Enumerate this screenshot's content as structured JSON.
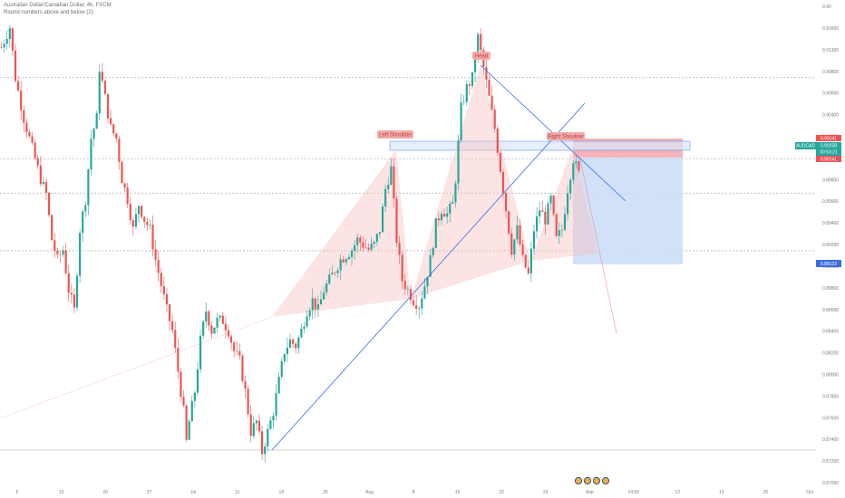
{
  "header": {
    "title": "Australian Dollar/Canadian Dollar, 4h, FXCM",
    "indicator": "Round numbers above and below (2)"
  },
  "price_label_top": "0.40",
  "colors": {
    "up": "#26a69a",
    "down": "#ef5350",
    "trendline": "#3c6ee8",
    "pattern_fill": "#f8c4c4",
    "target_zone": "#c9dcf7",
    "stop_zone": "#f3a7ad",
    "neckline_zone": "#dbe8fb",
    "grid_dashed": "#999999",
    "annotation_bg": "#f4a8a8",
    "annotation_text": "#b84545"
  },
  "chart_data": {
    "type": "candlestick",
    "title": "Australian Dollar/Canadian Dollar, 4h, FXCM",
    "symbol": "AUDCAD",
    "timeframe": "4h",
    "ylim": [
      0.87,
      0.92
    ],
    "y_ticks": [
      "0.91600",
      "0.91300",
      "0.90800",
      "0.90600",
      "0.90400",
      "0.90200",
      "0.90000",
      "0.89800",
      "0.89600",
      "0.89400",
      "0.89200",
      "0.89000",
      "0.88800",
      "0.88600",
      "0.88400",
      "0.88200",
      "0.88000",
      "0.87800",
      "0.87600",
      "0.87400",
      "0.87200",
      "0.87000"
    ],
    "x_ticks": [
      "6",
      "13",
      "20",
      "27",
      "Jul",
      "11",
      "18",
      "25",
      "Aug",
      "8",
      "15",
      "22",
      "29",
      "Sep",
      "14:00",
      "12",
      "19",
      "26",
      "Oct"
    ],
    "grid": "horizontal round-number dashed lines",
    "round_number_levels": [
      0.911,
      0.903,
      0.8996,
      0.8939
    ],
    "annotations": [
      "Head",
      "Left Shoulder",
      "Right Shoulder"
    ],
    "price_labels": {
      "stop": "0.90141",
      "current_symbol": "AUDCAD",
      "current": "0.90258",
      "countdown": "00:53:21",
      "entry": "0.90141",
      "target": "0.89122"
    },
    "ohlc_anchor_points": [
      [
        0,
        0.914
      ],
      [
        3,
        0.916
      ],
      [
        5,
        0.911
      ],
      [
        8,
        0.907
      ],
      [
        11,
        0.904
      ],
      [
        14,
        0.901
      ],
      [
        16,
        0.8995
      ],
      [
        18,
        0.895
      ],
      [
        20,
        0.893
      ],
      [
        22,
        0.894
      ],
      [
        24,
        0.89
      ],
      [
        26,
        0.888
      ],
      [
        28,
        0.896
      ],
      [
        30,
        0.899
      ],
      [
        32,
        0.905
      ],
      [
        34,
        0.907
      ],
      [
        35,
        0.912
      ],
      [
        37,
        0.909
      ],
      [
        39,
        0.906
      ],
      [
        41,
        0.905
      ],
      [
        43,
        0.901
      ],
      [
        45,
        0.899
      ],
      [
        47,
        0.896
      ],
      [
        49,
        0.8985
      ],
      [
        51,
        0.897
      ],
      [
        53,
        0.896
      ],
      [
        55,
        0.893
      ],
      [
        57,
        0.8905
      ],
      [
        59,
        0.888
      ],
      [
        61,
        0.886
      ],
      [
        63,
        0.882
      ],
      [
        65,
        0.878
      ],
      [
        66,
        0.875
      ],
      [
        67,
        0.877
      ],
      [
        69,
        0.88
      ],
      [
        71,
        0.885
      ],
      [
        73,
        0.888
      ],
      [
        75,
        0.886
      ],
      [
        77,
        0.887
      ],
      [
        79,
        0.887
      ],
      [
        81,
        0.886
      ],
      [
        83,
        0.884
      ],
      [
        85,
        0.883
      ],
      [
        87,
        0.88
      ],
      [
        88,
        0.878
      ],
      [
        89,
        0.876
      ],
      [
        91,
        0.877
      ],
      [
        93,
        0.874
      ],
      [
        95,
        0.876
      ],
      [
        97,
        0.878
      ],
      [
        99,
        0.881
      ],
      [
        101,
        0.884
      ],
      [
        103,
        0.885
      ],
      [
        105,
        0.8845
      ],
      [
        107,
        0.886
      ],
      [
        109,
        0.888
      ],
      [
        111,
        0.889
      ],
      [
        113,
        0.888
      ],
      [
        115,
        0.89
      ],
      [
        117,
        0.891
      ],
      [
        119,
        0.892
      ],
      [
        121,
        0.893
      ],
      [
        123,
        0.8935
      ],
      [
        125,
        0.894
      ],
      [
        127,
        0.895
      ],
      [
        129,
        0.8945
      ],
      [
        131,
        0.894
      ],
      [
        133,
        0.8945
      ],
      [
        135,
        0.896
      ],
      [
        137,
        0.9
      ],
      [
        139,
        0.902
      ],
      [
        141,
        0.895
      ],
      [
        143,
        0.891
      ],
      [
        145,
        0.89
      ],
      [
        147,
        0.889
      ],
      [
        149,
        0.8885
      ],
      [
        151,
        0.8905
      ],
      [
        153,
        0.893
      ],
      [
        155,
        0.8965
      ],
      [
        157,
        0.898
      ],
      [
        159,
        0.8975
      ],
      [
        161,
        0.8985
      ],
      [
        162,
        0.901
      ],
      [
        164,
        0.908
      ],
      [
        166,
        0.91
      ],
      [
        168,
        0.911
      ],
      [
        170,
        0.915
      ],
      [
        172,
        0.912
      ],
      [
        174,
        0.909
      ],
      [
        176,
        0.906
      ],
      [
        178,
        0.902
      ],
      [
        180,
        0.898
      ],
      [
        182,
        0.894
      ],
      [
        184,
        0.896
      ],
      [
        186,
        0.893
      ],
      [
        188,
        0.8915
      ],
      [
        190,
        0.896
      ],
      [
        192,
        0.898
      ],
      [
        194,
        0.897
      ],
      [
        196,
        0.899
      ],
      [
        198,
        0.895
      ],
      [
        200,
        0.896
      ],
      [
        202,
        0.9
      ],
      [
        204,
        0.903
      ],
      [
        206,
        0.9015
      ]
    ]
  }
}
